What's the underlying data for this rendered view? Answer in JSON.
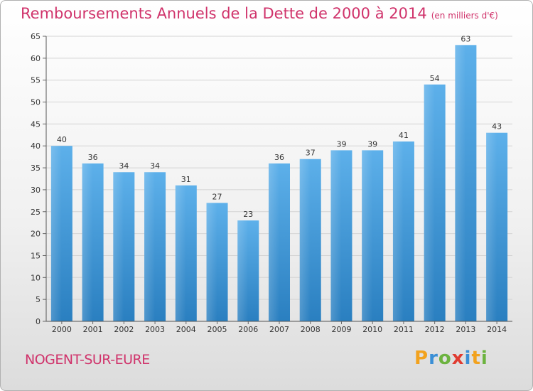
{
  "title": "Remboursements Annuels de la Dette de 2000 à 2014",
  "unit": "(en milliers d'€)",
  "commune": "NOGENT-SUR-EURE",
  "logo": {
    "p": "P",
    "r": "r",
    "o": "o",
    "x": "x",
    "i1": "i",
    "t": "t",
    "i2": "i"
  },
  "colors": {
    "bar_top": "#5db0ea",
    "bar_bottom": "#2a7fc0",
    "title": "#d0336b",
    "grid": "#d4d4d4"
  },
  "chart_data": {
    "type": "bar",
    "title": "Remboursements Annuels de la Dette de 2000 à 2014",
    "ylabel": "",
    "xlabel": "",
    "categories": [
      "2000",
      "2001",
      "2002",
      "2003",
      "2004",
      "2005",
      "2006",
      "2007",
      "2008",
      "2009",
      "2010",
      "2011",
      "2012",
      "2013",
      "2014"
    ],
    "values": [
      40,
      36,
      34,
      34,
      31,
      27,
      23,
      36,
      37,
      39,
      39,
      41,
      54,
      63,
      43
    ],
    "ylim": [
      0,
      65
    ],
    "yticks": [
      0,
      5,
      10,
      15,
      20,
      25,
      30,
      35,
      40,
      45,
      50,
      55,
      60,
      65
    ],
    "grid": true
  }
}
